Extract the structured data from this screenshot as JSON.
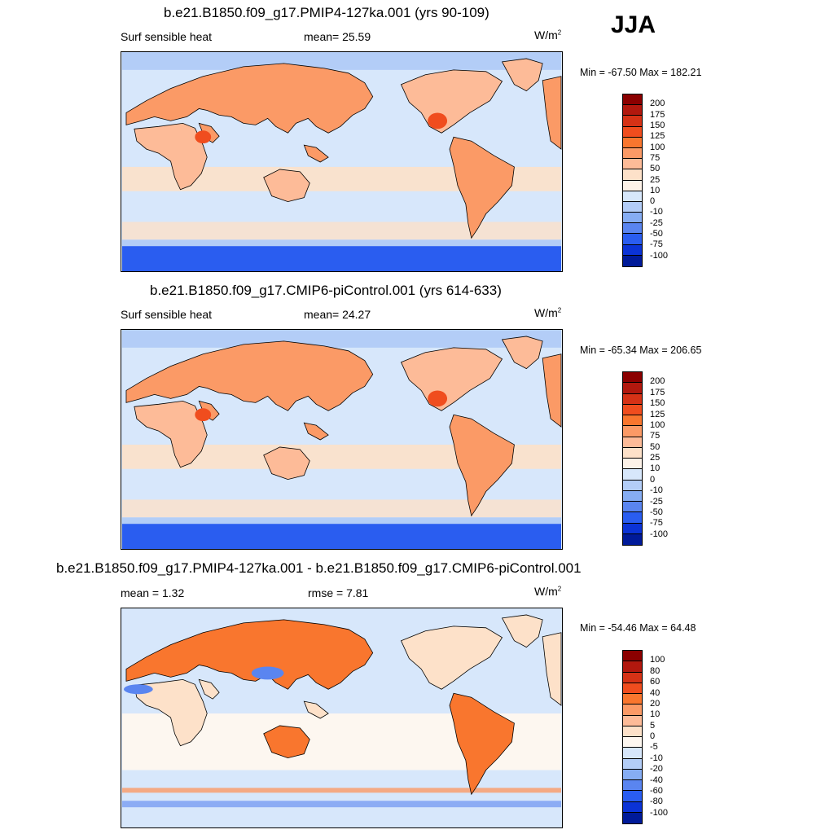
{
  "season": "JJA",
  "panels": [
    {
      "title": "b.e21.B1850.f09_g17.PMIP4-127ka.001 (yrs 90-109)",
      "left_label": "Surf sensible heat",
      "center_label": "mean=  25.59",
      "units": "W/m",
      "units_exp": "2",
      "minmax": "Min = -67.50 Max = 182.21",
      "levels": [
        "200",
        "175",
        "150",
        "125",
        "100",
        "75",
        "50",
        "25",
        "10",
        "0",
        "-10",
        "-25",
        "-50",
        "-75",
        "-100"
      ],
      "colors": [
        "#8b0000",
        "#b2180e",
        "#d63216",
        "#f04d1e",
        "#f9762e",
        "#fb9a66",
        "#fdbb98",
        "#fde1c9",
        "#fdf2e8",
        "#d7e7fb",
        "#b3cdf7",
        "#86adf3",
        "#5a85f0",
        "#2a5df0",
        "#0b33d6",
        "#001a99"
      ],
      "map_style": "absolute"
    },
    {
      "title": "b.e21.B1850.f09_g17.CMIP6-piControl.001 (yrs 614-633)",
      "left_label": "Surf sensible heat",
      "center_label": "mean=  24.27",
      "units": "W/m",
      "units_exp": "2",
      "minmax": "Min = -65.34 Max = 206.65",
      "levels": [
        "200",
        "175",
        "150",
        "125",
        "100",
        "75",
        "50",
        "25",
        "10",
        "0",
        "-10",
        "-25",
        "-50",
        "-75",
        "-100"
      ],
      "colors": [
        "#8b0000",
        "#b2180e",
        "#d63216",
        "#f04d1e",
        "#f9762e",
        "#fb9a66",
        "#fdbb98",
        "#fde1c9",
        "#fdf2e8",
        "#d7e7fb",
        "#b3cdf7",
        "#86adf3",
        "#5a85f0",
        "#2a5df0",
        "#0b33d6",
        "#001a99"
      ],
      "map_style": "absolute"
    },
    {
      "title": "b.e21.B1850.f09_g17.PMIP4-127ka.001 - b.e21.B1850.f09_g17.CMIP6-piControl.001",
      "left_label": "mean =   1.32",
      "center_label": "rmse =   7.81",
      "units": "W/m",
      "units_exp": "2",
      "minmax": "Min = -54.46 Max =  64.48",
      "levels": [
        "100",
        "80",
        "60",
        "40",
        "20",
        "10",
        "5",
        "0",
        "-5",
        "-10",
        "-20",
        "-40",
        "-60",
        "-80",
        "-100"
      ],
      "colors": [
        "#8b0000",
        "#b2180e",
        "#d63216",
        "#f04d1e",
        "#f9762e",
        "#fb9a66",
        "#fdbb98",
        "#fde1c9",
        "#fdf7f0",
        "#d7e7fb",
        "#b3cdf7",
        "#86adf3",
        "#5a85f0",
        "#2a5df0",
        "#0b33d6",
        "#001a99"
      ],
      "map_style": "difference"
    }
  ]
}
